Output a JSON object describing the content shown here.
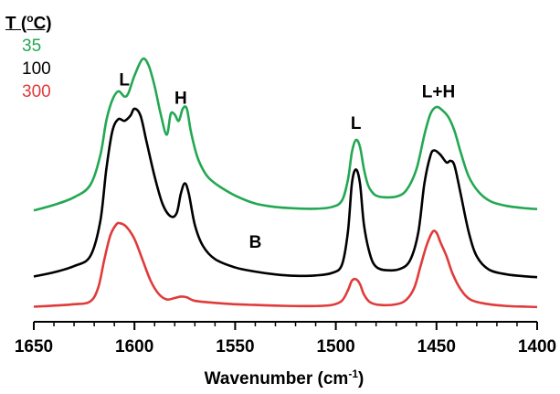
{
  "chart_data": {
    "type": "line",
    "xlabel": "Wavenumber (cm-1)",
    "xlabel_main": "Wavenumber (cm",
    "xlabel_sup": "-1",
    "xlabel_end": ")",
    "xlim": [
      1650,
      1400
    ],
    "x_reversed": true,
    "x_ticks": [
      "1650",
      "1600",
      "1550",
      "1500",
      "1450",
      "1400"
    ],
    "y_ticks_shown": false,
    "legend": {
      "title_prefix": "T (",
      "title_sup": "o",
      "title_suffix": "C)",
      "placement": "top-left"
    },
    "annotations": [
      {
        "text": "L",
        "x": 1605
      },
      {
        "text": "H",
        "x": 1577
      },
      {
        "text": "B",
        "x": 1540
      },
      {
        "text": "L",
        "x": 1490
      },
      {
        "text": "L+H",
        "x": 1449
      }
    ],
    "series": [
      {
        "name": "35",
        "color": "#22a852",
        "points": [
          [
            1650,
            3.02
          ],
          [
            1640,
            3.18
          ],
          [
            1630,
            3.4
          ],
          [
            1622,
            3.75
          ],
          [
            1617,
            4.6
          ],
          [
            1614,
            5.6
          ],
          [
            1611,
            6.2
          ],
          [
            1608,
            6.45
          ],
          [
            1605,
            6.3
          ],
          [
            1603,
            6.4
          ],
          [
            1600,
            6.9
          ],
          [
            1596,
            7.38
          ],
          [
            1593,
            7.2
          ],
          [
            1590,
            6.6
          ],
          [
            1587,
            5.8
          ],
          [
            1584,
            5.2
          ],
          [
            1582,
            5.8
          ],
          [
            1580,
            5.78
          ],
          [
            1578,
            5.6
          ],
          [
            1576,
            5.95
          ],
          [
            1574,
            5.95
          ],
          [
            1572,
            5.3
          ],
          [
            1569,
            4.6
          ],
          [
            1566,
            4.2
          ],
          [
            1563,
            3.95
          ],
          [
            1558,
            3.72
          ],
          [
            1550,
            3.45
          ],
          [
            1540,
            3.22
          ],
          [
            1530,
            3.12
          ],
          [
            1520,
            3.08
          ],
          [
            1510,
            3.07
          ],
          [
            1502,
            3.12
          ],
          [
            1497,
            3.3
          ],
          [
            1494,
            3.9
          ],
          [
            1492,
            4.7
          ],
          [
            1490,
            5.05
          ],
          [
            1488,
            4.85
          ],
          [
            1486,
            4.2
          ],
          [
            1484,
            3.75
          ],
          [
            1482,
            3.55
          ],
          [
            1480,
            3.45
          ],
          [
            1476,
            3.4
          ],
          [
            1470,
            3.42
          ],
          [
            1465,
            3.6
          ],
          [
            1460,
            4.2
          ],
          [
            1456,
            5.2
          ],
          [
            1453,
            5.8
          ],
          [
            1450,
            6.0
          ],
          [
            1447,
            5.9
          ],
          [
            1444,
            5.7
          ],
          [
            1441,
            5.3
          ],
          [
            1438,
            4.7
          ],
          [
            1434,
            4.0
          ],
          [
            1429,
            3.55
          ],
          [
            1423,
            3.28
          ],
          [
            1415,
            3.15
          ],
          [
            1405,
            3.08
          ],
          [
            1400,
            3.06
          ]
        ]
      },
      {
        "name": "100",
        "color": "#000000",
        "points": [
          [
            1650,
            1.12
          ],
          [
            1640,
            1.24
          ],
          [
            1630,
            1.42
          ],
          [
            1622,
            1.7
          ],
          [
            1617,
            2.7
          ],
          [
            1614,
            4.2
          ],
          [
            1611,
            5.3
          ],
          [
            1608,
            5.65
          ],
          [
            1605,
            5.6
          ],
          [
            1602,
            5.75
          ],
          [
            1600,
            5.95
          ],
          [
            1597,
            5.75
          ],
          [
            1594,
            5.0
          ],
          [
            1590,
            4.0
          ],
          [
            1586,
            3.2
          ],
          [
            1582,
            2.85
          ],
          [
            1579,
            2.95
          ],
          [
            1577,
            3.5
          ],
          [
            1575,
            3.8
          ],
          [
            1573,
            3.5
          ],
          [
            1570,
            2.6
          ],
          [
            1566,
            2.0
          ],
          [
            1560,
            1.62
          ],
          [
            1550,
            1.38
          ],
          [
            1540,
            1.26
          ],
          [
            1530,
            1.18
          ],
          [
            1520,
            1.14
          ],
          [
            1510,
            1.15
          ],
          [
            1502,
            1.22
          ],
          [
            1497,
            1.45
          ],
          [
            1494,
            2.4
          ],
          [
            1492,
            3.8
          ],
          [
            1490,
            4.2
          ],
          [
            1488,
            3.8
          ],
          [
            1486,
            2.6
          ],
          [
            1483,
            1.75
          ],
          [
            1480,
            1.4
          ],
          [
            1475,
            1.3
          ],
          [
            1468,
            1.34
          ],
          [
            1463,
            1.6
          ],
          [
            1459,
            2.4
          ],
          [
            1456,
            3.8
          ],
          [
            1453,
            4.6
          ],
          [
            1451,
            4.75
          ],
          [
            1448,
            4.62
          ],
          [
            1445,
            4.4
          ],
          [
            1443,
            4.45
          ],
          [
            1441,
            4.3
          ],
          [
            1438,
            3.5
          ],
          [
            1434,
            2.4
          ],
          [
            1430,
            1.7
          ],
          [
            1424,
            1.32
          ],
          [
            1415,
            1.18
          ],
          [
            1405,
            1.12
          ],
          [
            1400,
            1.1
          ]
        ]
      },
      {
        "name": "300",
        "color": "#e03b3b",
        "points": [
          [
            1650,
            0.25
          ],
          [
            1640,
            0.28
          ],
          [
            1630,
            0.32
          ],
          [
            1622,
            0.4
          ],
          [
            1618,
            0.8
          ],
          [
            1615,
            1.6
          ],
          [
            1612,
            2.3
          ],
          [
            1609,
            2.62
          ],
          [
            1607,
            2.65
          ],
          [
            1604,
            2.55
          ],
          [
            1600,
            2.2
          ],
          [
            1596,
            1.6
          ],
          [
            1592,
            1.0
          ],
          [
            1588,
            0.62
          ],
          [
            1584,
            0.46
          ],
          [
            1580,
            0.5
          ],
          [
            1577,
            0.54
          ],
          [
            1574,
            0.52
          ],
          [
            1570,
            0.42
          ],
          [
            1560,
            0.36
          ],
          [
            1550,
            0.32
          ],
          [
            1540,
            0.3
          ],
          [
            1530,
            0.28
          ],
          [
            1520,
            0.27
          ],
          [
            1510,
            0.27
          ],
          [
            1502,
            0.3
          ],
          [
            1497,
            0.42
          ],
          [
            1494,
            0.72
          ],
          [
            1492,
            1.0
          ],
          [
            1490,
            1.04
          ],
          [
            1488,
            0.9
          ],
          [
            1486,
            0.6
          ],
          [
            1483,
            0.38
          ],
          [
            1478,
            0.3
          ],
          [
            1470,
            0.32
          ],
          [
            1465,
            0.45
          ],
          [
            1461,
            0.8
          ],
          [
            1458,
            1.4
          ],
          [
            1455,
            2.0
          ],
          [
            1452,
            2.4
          ],
          [
            1450,
            2.38
          ],
          [
            1448,
            2.1
          ],
          [
            1445,
            1.7
          ],
          [
            1442,
            1.2
          ],
          [
            1438,
            0.75
          ],
          [
            1433,
            0.45
          ],
          [
            1425,
            0.33
          ],
          [
            1415,
            0.27
          ],
          [
            1405,
            0.25
          ],
          [
            1400,
            0.24
          ]
        ]
      }
    ]
  }
}
